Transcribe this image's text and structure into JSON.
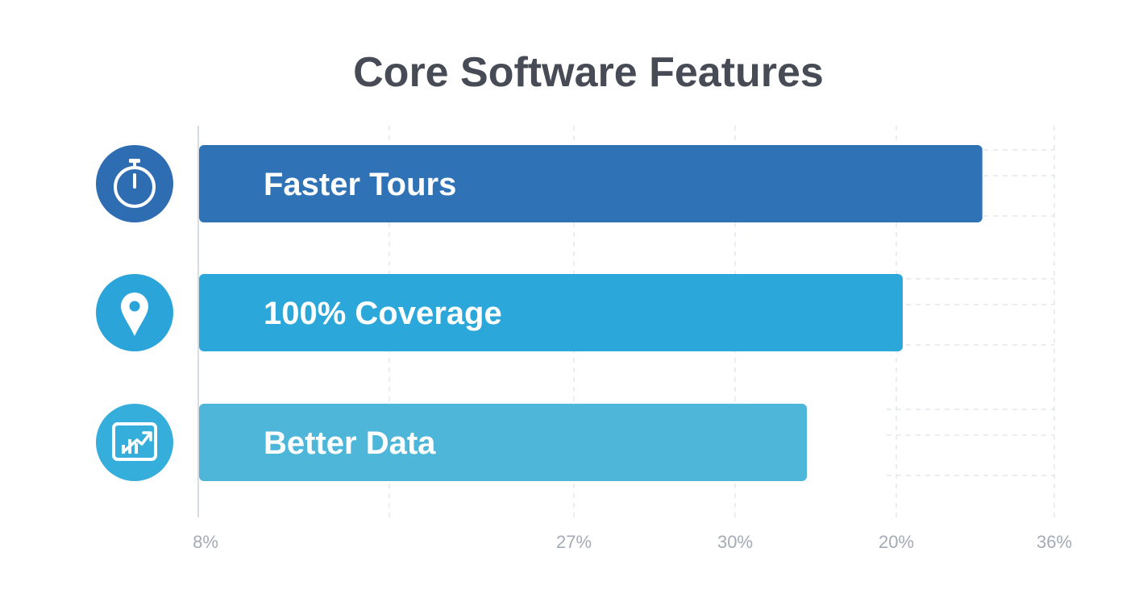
{
  "chart_data": {
    "type": "bar",
    "orientation": "horizontal",
    "title": "Core Software Features",
    "categories": [
      "Faster Tours",
      "100% Coverage",
      "Better Data"
    ],
    "values": [
      0.915,
      0.822,
      0.71
    ],
    "value_unit": "fraction of axis span",
    "xlim": [
      0,
      1
    ],
    "grid": true,
    "x_tick_labels": [
      "8%",
      "27%",
      "30%",
      "20%",
      "36%"
    ],
    "icons": [
      "stopwatch-icon",
      "map-pin-icon",
      "chart-growth-icon"
    ],
    "colors": {
      "bars": [
        "#3072b6",
        "#2ba7d9",
        "#4eb6d9"
      ],
      "icon_circles": [
        "#2f6db3",
        "#2ba4da",
        "#36aedb"
      ],
      "title": "#474b55",
      "tick_labels": "#a3abb6",
      "grid": "#dde3ea",
      "axis": "#c9d0d8"
    }
  }
}
